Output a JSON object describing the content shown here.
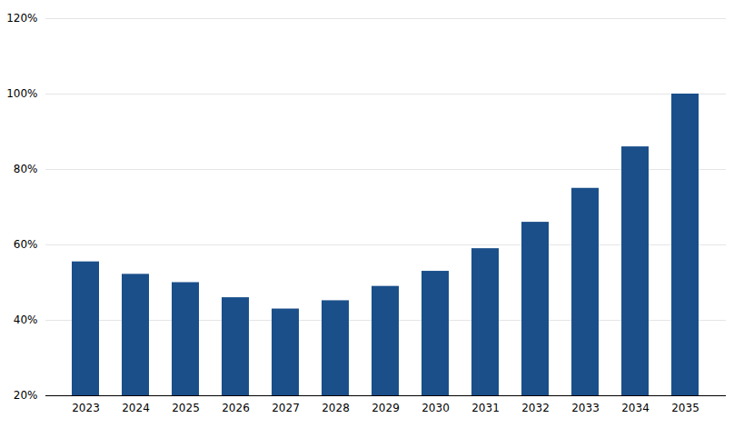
{
  "chart_data": {
    "type": "bar",
    "categories": [
      "2023",
      "2024",
      "2025",
      "2026",
      "2027",
      "2028",
      "2029",
      "2030",
      "2031",
      "2032",
      "2033",
      "2034",
      "2035"
    ],
    "values": [
      0.555,
      0.522,
      0.5,
      0.46,
      0.43,
      0.452,
      0.49,
      0.53,
      0.59,
      0.66,
      0.75,
      0.86,
      1.0
    ],
    "color": "#1a4f8a",
    "ylim": [
      0.2,
      1.2
    ],
    "yticks": [
      {
        "value": 0.2,
        "label": "20%"
      },
      {
        "value": 0.4,
        "label": "40%"
      },
      {
        "value": 0.6,
        "label": "60%"
      },
      {
        "value": 0.8,
        "label": "80%"
      },
      {
        "value": 1.0,
        "label": "100%"
      },
      {
        "value": 1.2,
        "label": "120%"
      }
    ],
    "grid": true
  }
}
